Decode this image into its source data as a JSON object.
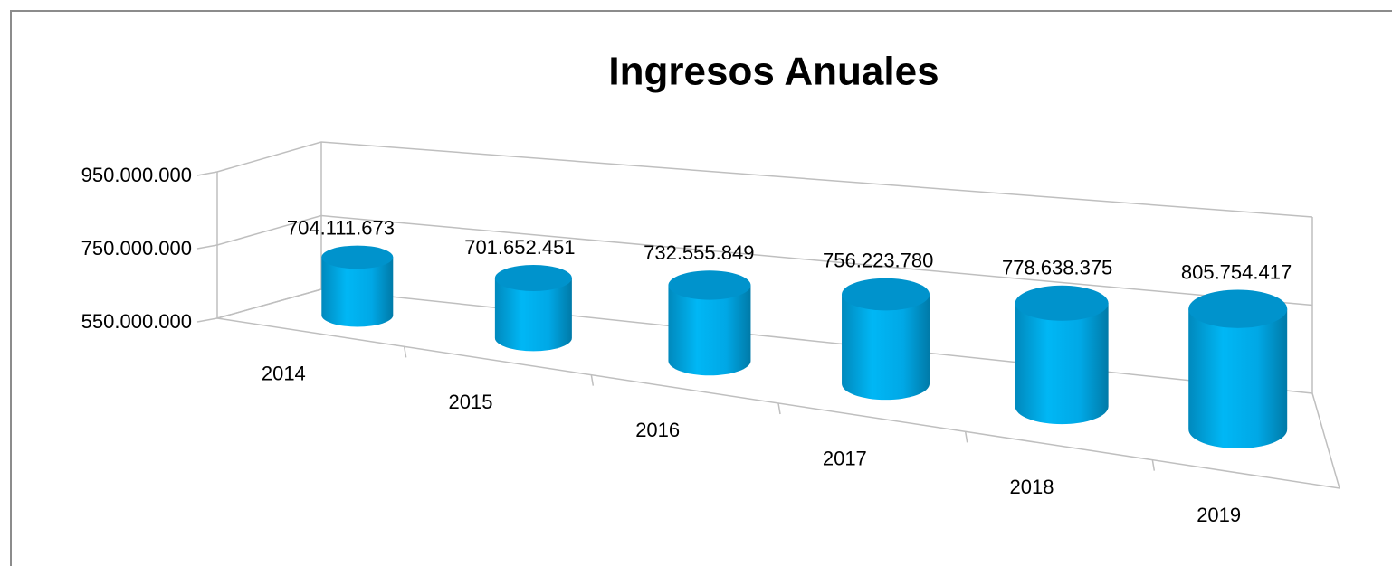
{
  "chart_data": {
    "type": "bar3d",
    "title": "Ingresos Anuales",
    "categories": [
      "2014",
      "2015",
      "2016",
      "2017",
      "2018",
      "2019"
    ],
    "values": [
      704111673,
      701652451,
      732555849,
      756223780,
      778638375,
      805754417
    ],
    "value_labels": [
      "704.111.673",
      "701.652.451",
      "732.555.849",
      "756.223.780",
      "778.638.375",
      "805.754.417"
    ],
    "color": "#00b0f0",
    "ylim": [
      550000000,
      950000000
    ],
    "yticks": [
      {
        "value": 550000000,
        "label": "550.000.000"
      },
      {
        "value": 750000000,
        "label": "750.000.000"
      },
      {
        "value": 950000000,
        "label": "950.000.000"
      }
    ],
    "grid": true
  }
}
